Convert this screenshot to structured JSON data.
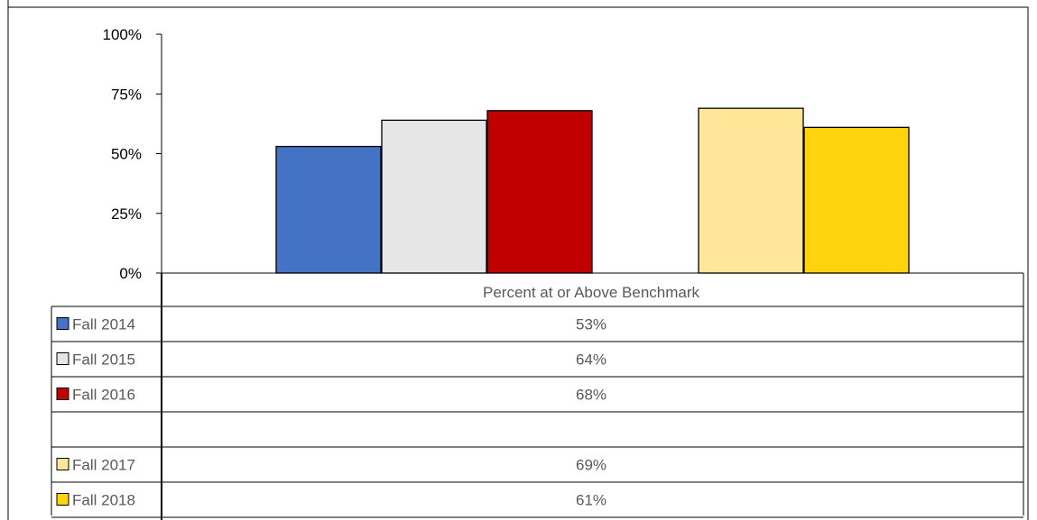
{
  "chart_data": {
    "type": "bar",
    "title": "",
    "xlabel": "",
    "ylabel": "",
    "category": "Percent at or Above Benchmark",
    "ylim": [
      0,
      100
    ],
    "yticks": [
      0,
      25,
      50,
      75,
      100
    ],
    "ytick_labels": [
      "0%",
      "25%",
      "50%",
      "75%",
      "100%"
    ],
    "grid": false,
    "legend": "data-table-left",
    "series": [
      {
        "name": "Fall 2014",
        "value": 53,
        "label": "53%",
        "color": "#4472C4"
      },
      {
        "name": "Fall 2015",
        "value": 64,
        "label": "64%",
        "color": "#E7E6E6"
      },
      {
        "name": "Fall 2016",
        "value": 68,
        "label": "68%",
        "color": "#C00000"
      },
      {
        "name": "",
        "value": null,
        "label": "",
        "color": "#FFFFFF"
      },
      {
        "name": "Fall 2017",
        "value": 69,
        "label": "69%",
        "color": "#FFE699"
      },
      {
        "name": "Fall 2018",
        "value": 61,
        "label": "61%",
        "color": "#FFD30D"
      }
    ]
  }
}
